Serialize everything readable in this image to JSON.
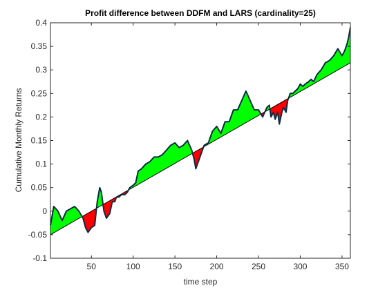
{
  "chart_data": {
    "type": "area",
    "title": "Profit difference between DDFM and LARS (cardinality=25)",
    "xlabel": "time step",
    "ylabel": "Cumulative Monthly Returns",
    "xlim": [
      1,
      360
    ],
    "ylim": [
      -0.1,
      0.4
    ],
    "xticks": [
      50,
      100,
      150,
      200,
      250,
      300,
      350
    ],
    "xtick_labels": [
      "50",
      "100",
      "150",
      "200",
      "250",
      "300",
      "350"
    ],
    "yticks": [
      -0.1,
      -0.05,
      0,
      0.05,
      0.1,
      0.15,
      0.2,
      0.25,
      0.3,
      0.35,
      0.4
    ],
    "ytick_labels": [
      "-0.1",
      "-0.05",
      "0",
      "0.05",
      "0.1",
      "0.15",
      "0.2",
      "0.25",
      "0.3",
      "0.35",
      "0.4"
    ],
    "grid": false,
    "legend": "none",
    "fill_above_color": "#00ff00",
    "fill_below_color": "#ff0000",
    "series_line_color": "#0b2a44",
    "baseline_color": "#000000",
    "baseline": {
      "x": [
        1,
        360
      ],
      "y": [
        -0.05,
        0.315
      ]
    },
    "series": [
      {
        "x": [
          1,
          5,
          10,
          15,
          20,
          25,
          30,
          35,
          40,
          43,
          46,
          50,
          54,
          57,
          60,
          62,
          65,
          68,
          70,
          72,
          75,
          78,
          80,
          83,
          86,
          90,
          93,
          96,
          100,
          103,
          106,
          110,
          115,
          120,
          125,
          130,
          135,
          140,
          145,
          150,
          155,
          160,
          165,
          170,
          173,
          175,
          178,
          181,
          185,
          190,
          195,
          200,
          205,
          210,
          215,
          220,
          225,
          230,
          235,
          240,
          245,
          250,
          255,
          260,
          263,
          265,
          268,
          270,
          273,
          275,
          278,
          280,
          283,
          285,
          288,
          291,
          294,
          297,
          300,
          303,
          306,
          310,
          313,
          316,
          320,
          325,
          330,
          335,
          340,
          345,
          350,
          353,
          356,
          358,
          360
        ],
        "y": [
          -0.03,
          0.01,
          0.0,
          -0.02,
          0.0,
          0.005,
          0.01,
          0.0,
          -0.015,
          -0.035,
          -0.045,
          -0.035,
          -0.03,
          0.02,
          0.05,
          0.04,
          0.0,
          -0.015,
          -0.01,
          -0.005,
          0.02,
          0.02,
          0.03,
          0.03,
          0.035,
          0.035,
          0.04,
          0.05,
          0.055,
          0.06,
          0.085,
          0.09,
          0.1,
          0.105,
          0.115,
          0.115,
          0.12,
          0.13,
          0.14,
          0.145,
          0.135,
          0.14,
          0.15,
          0.13,
          0.11,
          0.09,
          0.105,
          0.12,
          0.14,
          0.145,
          0.17,
          0.18,
          0.165,
          0.19,
          0.19,
          0.215,
          0.215,
          0.235,
          0.255,
          0.235,
          0.215,
          0.215,
          0.2,
          0.22,
          0.225,
          0.2,
          0.21,
          0.195,
          0.21,
          0.185,
          0.21,
          0.22,
          0.21,
          0.235,
          0.25,
          0.25,
          0.255,
          0.26,
          0.27,
          0.265,
          0.27,
          0.275,
          0.28,
          0.275,
          0.29,
          0.3,
          0.315,
          0.32,
          0.33,
          0.345,
          0.33,
          0.34,
          0.355,
          0.37,
          0.39
        ]
      }
    ]
  }
}
